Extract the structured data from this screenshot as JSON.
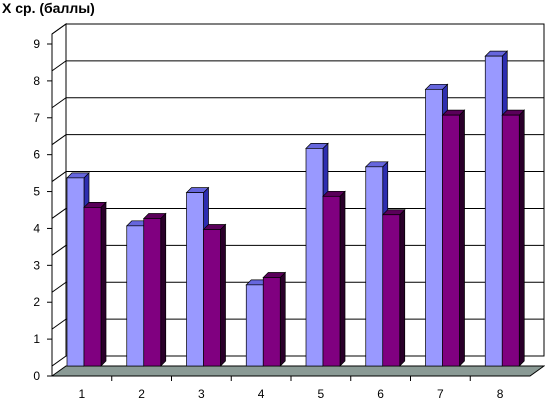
{
  "chart_data": {
    "type": "bar",
    "title": "X ср. (баллы)",
    "xlabel": "",
    "ylabel": "",
    "categories": [
      "1",
      "2",
      "3",
      "4",
      "5",
      "6",
      "7",
      "8"
    ],
    "series": [
      {
        "values": [
          5.1,
          3.8,
          4.7,
          2.2,
          5.9,
          5.4,
          7.5,
          8.4
        ]
      },
      {
        "values": [
          4.3,
          4.0,
          3.7,
          2.4,
          4.6,
          4.1,
          6.8,
          6.8
        ]
      }
    ],
    "ylim": [
      0,
      9
    ],
    "yticks": [
      "0",
      "1",
      "2",
      "3",
      "4",
      "5",
      "6",
      "7",
      "8",
      "9"
    ],
    "grid": true,
    "colors": {
      "series": [
        "#9999ff",
        "#800080"
      ],
      "series_side": [
        "#2d2db0",
        "#2a002a"
      ],
      "series_top": [
        "#6666dd",
        "#5a005a"
      ],
      "floor": "#8a9a95",
      "grid": "#000000",
      "wall": "#ffffff"
    }
  }
}
